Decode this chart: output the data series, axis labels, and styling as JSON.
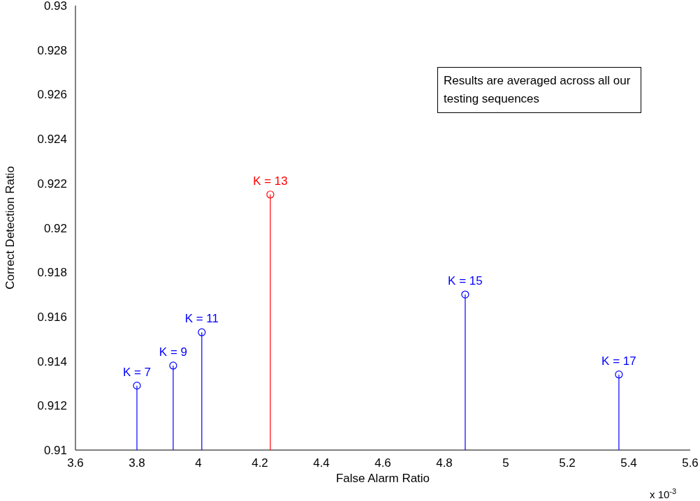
{
  "chart_data": {
    "type": "lollipop",
    "xlabel": "False Alarm Ratio",
    "ylabel": "Correct Detection Ratio",
    "x": [
      3.8,
      3.918,
      4.011,
      4.234,
      4.868,
      5.368
    ],
    "series": [
      {
        "values": [
          0.9129,
          0.9138,
          0.9153,
          0.9215,
          0.917,
          0.9134
        ],
        "colors": [
          "#0000ff",
          "#0000ff",
          "#0000ff",
          "#ff0000",
          "#0000ff",
          "#0000ff"
        ]
      }
    ],
    "xlim": [
      3.6,
      5.6
    ],
    "xticks": [
      3.6,
      3.8,
      4,
      4.2,
      4.4,
      4.6,
      4.8,
      5,
      5.2,
      5.4,
      5.6
    ],
    "ylim": [
      0.91,
      0.93
    ],
    "yticks": [
      0.91,
      0.912,
      0.914,
      0.916,
      0.918,
      0.92,
      0.922,
      0.924,
      0.926,
      0.928,
      0.93
    ],
    "marker": "circle",
    "line_style": "solid",
    "grid": false,
    "annotations": [
      "Results are averaged across all our testing sequences",
      "x 10$^{-3}$",
      {
        "text": "K = 7",
        "x": 3.8,
        "y": 0.9129
      },
      {
        "text": "K = 9",
        "x": 3.918,
        "y": 0.9138
      },
      {
        "text": "K = 11",
        "x": 4.011,
        "y": 0.9153
      },
      {
        "text": "K = 13",
        "x": 4.234,
        "y": 0.9215
      },
      {
        "text": "K = 15",
        "x": 4.868,
        "y": 0.917
      },
      {
        "text": "K = 17",
        "x": 5.368,
        "y": 0.9134
      }
    ]
  }
}
